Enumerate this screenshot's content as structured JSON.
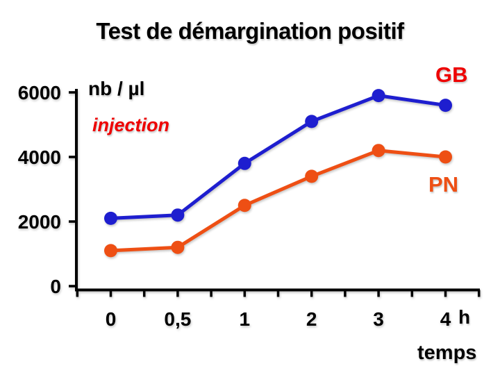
{
  "title": "Test de démargination positif",
  "colors": {
    "background": "#ffffff",
    "title": "#000000",
    "axis": "#000000",
    "annotation": "#ee0000"
  },
  "chart_data": {
    "type": "line",
    "title": "Test de démargination positif",
    "categories": [
      "0",
      "0,5",
      "1",
      "2",
      "3",
      "4"
    ],
    "x_unit_label": "h",
    "xlabel": "temps",
    "ylabel": "nb / µl",
    "annotation": "injection",
    "ylim": [
      0,
      6000
    ],
    "yticks": [
      0,
      2000,
      4000,
      6000
    ],
    "ytick_labels": [
      "0",
      "2000",
      "4000",
      "6000"
    ],
    "grid": false,
    "legend_position": "labels-at-line-ends",
    "series": [
      {
        "name": "GB",
        "color": "#1e1ecf",
        "label_color": "#ee0000",
        "values": [
          2100,
          2200,
          3800,
          5100,
          5900,
          5600
        ]
      },
      {
        "name": "PN",
        "color": "#ee4f14",
        "label_color": "#ee4f14",
        "values": [
          1100,
          1200,
          2500,
          3400,
          4200,
          4000
        ]
      }
    ]
  }
}
